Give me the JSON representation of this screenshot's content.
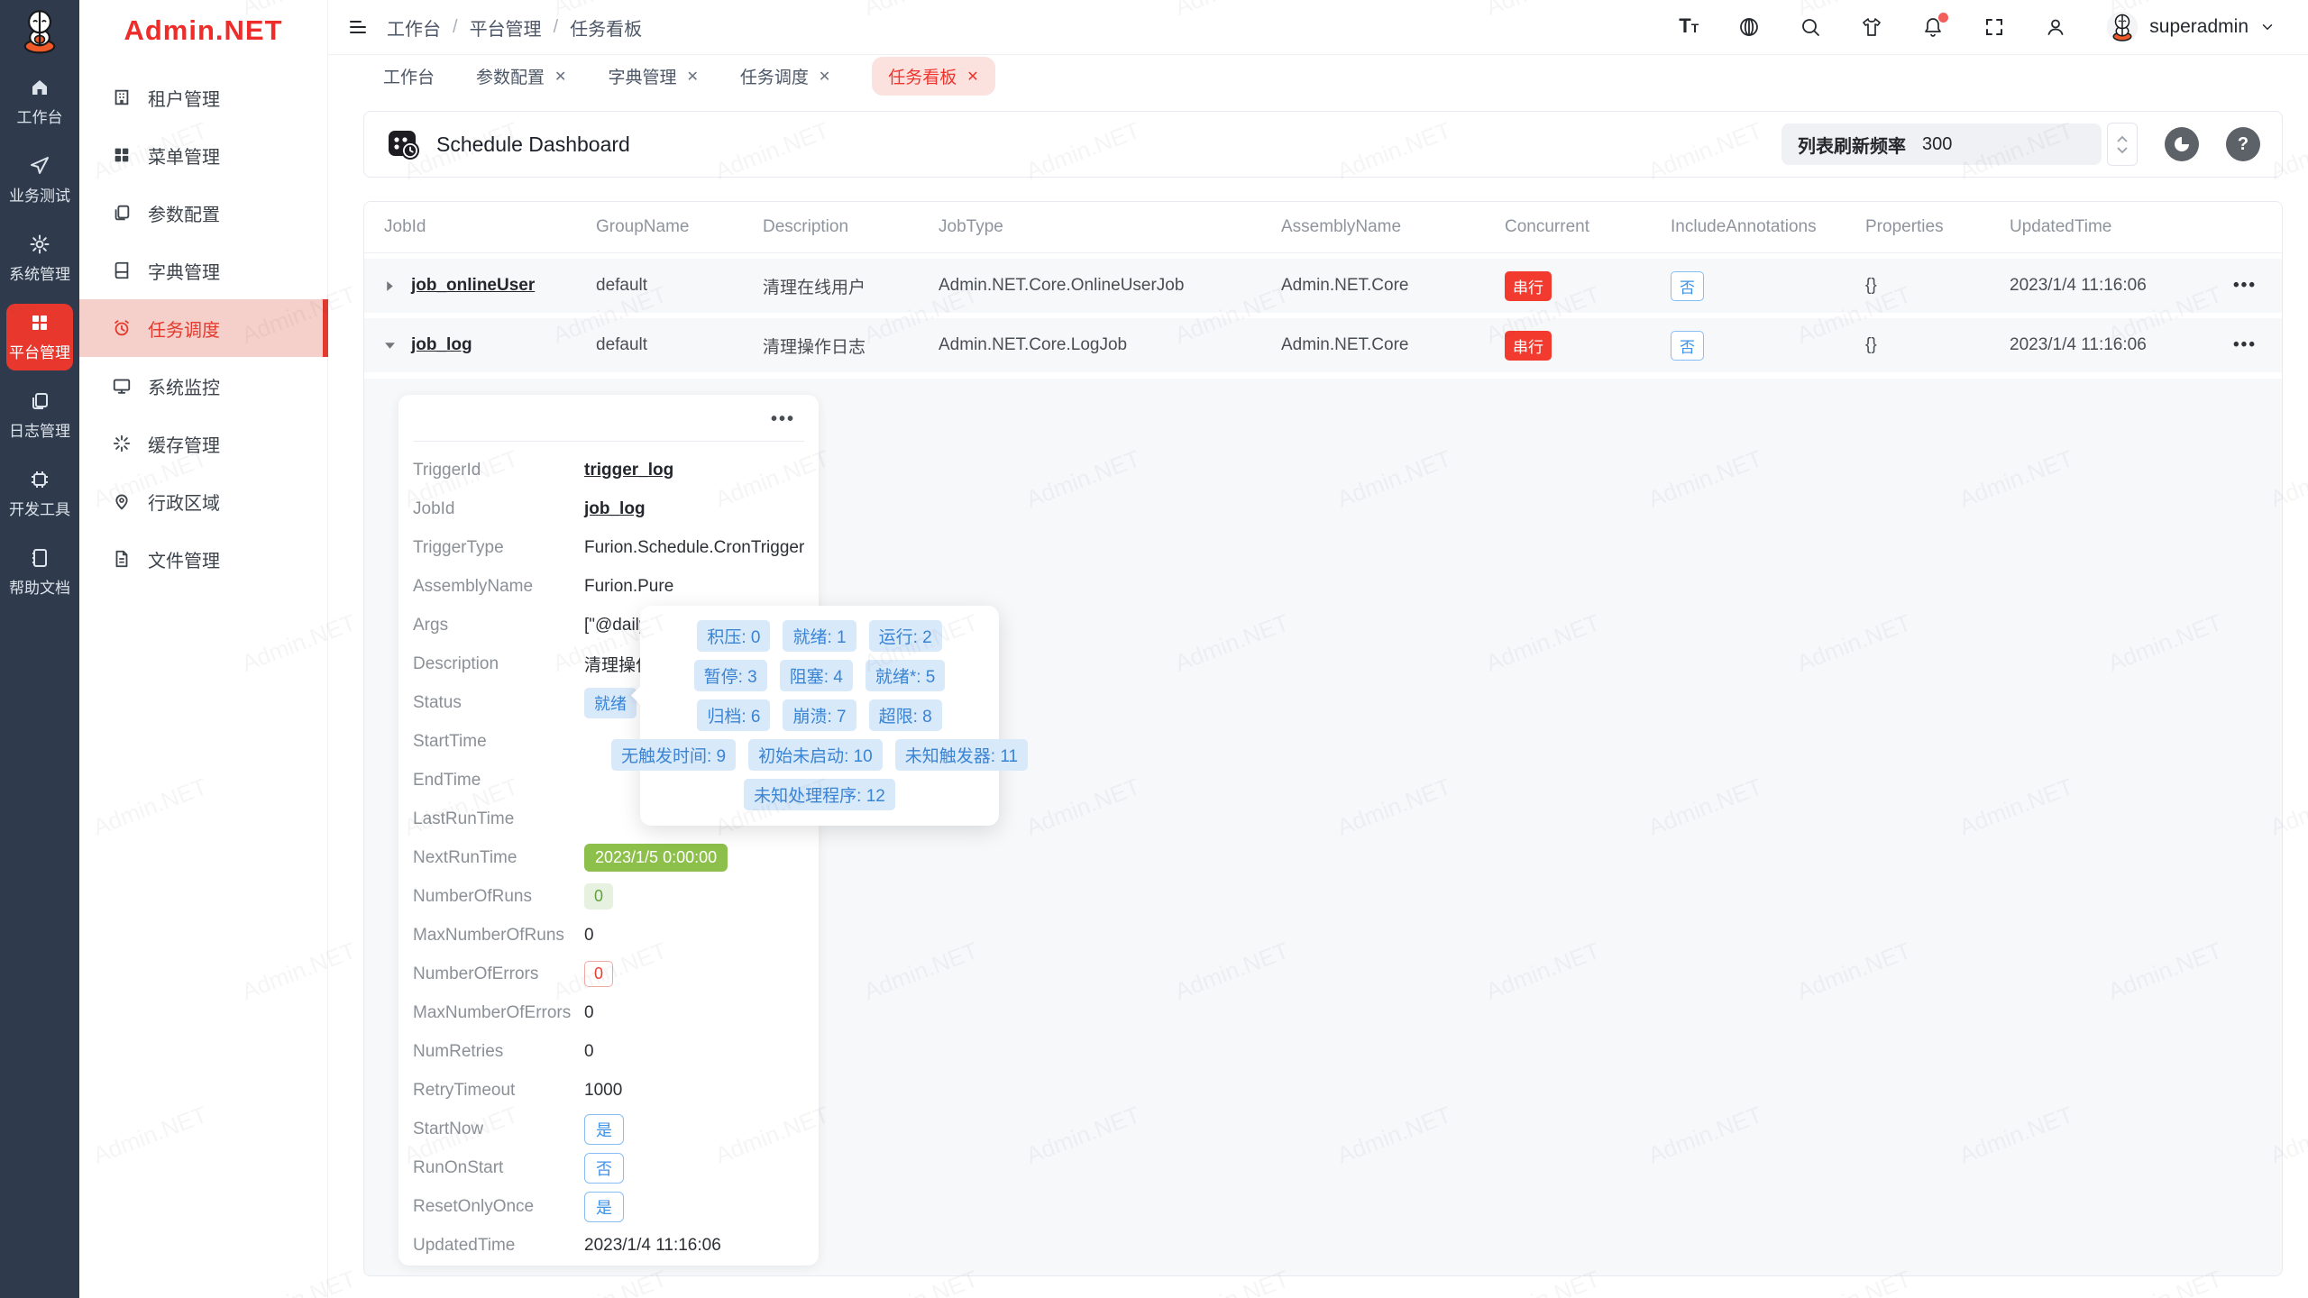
{
  "brand": {
    "wordmark": "Admin.NET"
  },
  "rail": {
    "items": [
      {
        "label": "工作台",
        "icon": "home-icon",
        "active": false
      },
      {
        "label": "业务测试",
        "icon": "paper-plane-icon",
        "active": false
      },
      {
        "label": "系统管理",
        "icon": "gear-icon",
        "active": false
      },
      {
        "label": "平台管理",
        "icon": "grid-icon",
        "active": true
      },
      {
        "label": "日志管理",
        "icon": "copy-docs-icon",
        "active": false
      },
      {
        "label": "开发工具",
        "icon": "chip-icon",
        "active": false
      },
      {
        "label": "帮助文档",
        "icon": "notebook-icon",
        "active": false
      }
    ]
  },
  "sidebar": {
    "title": "Admin.NET",
    "items": [
      {
        "label": "租户管理",
        "icon": "building-icon",
        "active": false
      },
      {
        "label": "菜单管理",
        "icon": "menu-grid-icon",
        "active": false
      },
      {
        "label": "参数配置",
        "icon": "params-doc-icon",
        "active": false
      },
      {
        "label": "字典管理",
        "icon": "dictionary-book-icon",
        "active": false
      },
      {
        "label": "任务调度",
        "icon": "alarm-clock-icon",
        "active": true
      },
      {
        "label": "系统监控",
        "icon": "monitor-icon",
        "active": false
      },
      {
        "label": "缓存管理",
        "icon": "cache-spinner-icon",
        "active": false
      },
      {
        "label": "行政区域",
        "icon": "map-pin-icon",
        "active": false
      },
      {
        "label": "文件管理",
        "icon": "file-icon",
        "active": false
      }
    ]
  },
  "topbar": {
    "breadcrumb": [
      "工作台",
      "平台管理",
      "任务看板"
    ],
    "username": "superadmin"
  },
  "tabs": [
    {
      "label": "工作台",
      "closable": false,
      "active": false
    },
    {
      "label": "参数配置",
      "closable": true,
      "active": false
    },
    {
      "label": "字典管理",
      "closable": true,
      "active": false
    },
    {
      "label": "任务调度",
      "closable": true,
      "active": false
    },
    {
      "label": "任务看板",
      "closable": true,
      "active": true
    }
  ],
  "panel": {
    "title": "Schedule Dashboard",
    "refresh_label": "列表刷新频率",
    "refresh_value": "300"
  },
  "table": {
    "columns": [
      "JobId",
      "GroupName",
      "Description",
      "JobType",
      "AssemblyName",
      "Concurrent",
      "IncludeAnnotations",
      "Properties",
      "UpdatedTime"
    ],
    "rows": [
      {
        "job_id": "job_onlineUser",
        "group": "default",
        "description": "清理在线用户",
        "job_type": "Admin.NET.Core.OnlineUserJob",
        "assembly": "Admin.NET.Core",
        "concurrent": "串行",
        "include_annotations": "否",
        "properties": "{}",
        "updated": "2023/1/4 11:16:06",
        "expanded": false
      },
      {
        "job_id": "job_log",
        "group": "default",
        "description": "清理操作日志",
        "job_type": "Admin.NET.Core.LogJob",
        "assembly": "Admin.NET.Core",
        "concurrent": "串行",
        "include_annotations": "否",
        "properties": "{}",
        "updated": "2023/1/4 11:16:06",
        "expanded": true
      }
    ]
  },
  "detail": {
    "fields": [
      {
        "label": "TriggerId",
        "value": "trigger_log"
      },
      {
        "label": "JobId",
        "value": "job_log"
      },
      {
        "label": "TriggerType",
        "value": "Furion.Schedule.CronTrigger"
      },
      {
        "label": "AssemblyName",
        "value": "Furion.Pure"
      },
      {
        "label": "Args",
        "value": "[\"@daily"
      },
      {
        "label": "Description",
        "value": "清理操作日志"
      },
      {
        "label": "Status",
        "value": "就绪"
      },
      {
        "label": "StartTime",
        "value": ""
      },
      {
        "label": "EndTime",
        "value": ""
      },
      {
        "label": "LastRunTime",
        "value": ""
      },
      {
        "label": "NextRunTime",
        "value": "2023/1/5 0:00:00"
      },
      {
        "label": "NumberOfRuns",
        "value": "0"
      },
      {
        "label": "MaxNumberOfRuns",
        "value": "0"
      },
      {
        "label": "NumberOfErrors",
        "value": "0"
      },
      {
        "label": "MaxNumberOfErrors",
        "value": "0"
      },
      {
        "label": "NumRetries",
        "value": "0"
      },
      {
        "label": "RetryTimeout",
        "value": "1000"
      },
      {
        "label": "StartNow",
        "value": "是"
      },
      {
        "label": "RunOnStart",
        "value": "否"
      },
      {
        "label": "ResetOnlyOnce",
        "value": "是"
      },
      {
        "label": "UpdatedTime",
        "value": "2023/1/4 11:16:06"
      }
    ]
  },
  "popup": {
    "rows": [
      [
        "积压: 0",
        "就绪: 1",
        "运行: 2"
      ],
      [
        "暂停: 3",
        "阻塞: 4",
        "就绪*: 5"
      ],
      [
        "归档: 6",
        "崩溃: 7",
        "超限: 8"
      ],
      [
        "无触发时间: 9",
        "初始未启动: 10",
        "未知触发器: 11"
      ],
      [
        "未知处理程序: 12"
      ]
    ]
  },
  "ui": {
    "close_glyph": "✕",
    "more_glyph": "•••",
    "crumb_sep": "/"
  },
  "watermark": {
    "text": "Admin.NET"
  },
  "colors": {
    "accent_red": "#ee342c",
    "rail_bg": "#2f3b4d",
    "rail_active_bg": "#e8382e",
    "sidebar_active_bg": "#f5cfc9",
    "tab_active_bg": "#fbe2df",
    "row_bg": "#f7f8fa",
    "badge_danger_bg": "#f23a2e",
    "badge_info_bg": "#d8e9fa",
    "badge_info_text": "#3a84d4",
    "badge_success_solid_bg": "#8dbf4b",
    "badge_success_plain_bg": "#e6f2df",
    "badge_outline_blue": "#86bdf5",
    "badge_outline_red": "#f3a9a3"
  }
}
